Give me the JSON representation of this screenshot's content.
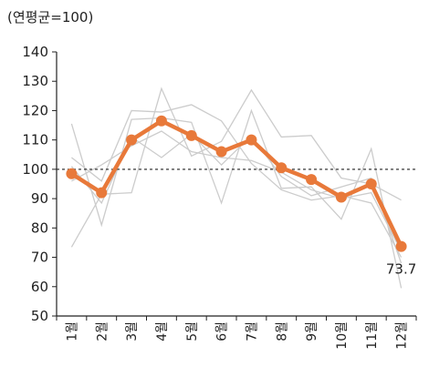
{
  "chart_data": {
    "type": "line",
    "unit_label": "(연평균=100)",
    "categories": [
      "1월",
      "2월",
      "3월",
      "4월",
      "5월",
      "6월",
      "7월",
      "8월",
      "9월",
      "10월",
      "11월",
      "12월"
    ],
    "ylim": [
      50,
      140
    ],
    "y_ticks": [
      "140",
      "130",
      "120",
      "110",
      "100",
      "90",
      "80",
      "70",
      "60",
      "50"
    ],
    "reference_line": 100,
    "highlight_series": {
      "values": [
        98.5,
        92,
        110,
        116.5,
        111.5,
        106,
        110,
        100.5,
        96.5,
        90.5,
        95,
        73.7
      ],
      "color": "#e8793a",
      "end_label": "73.7"
    },
    "background_series": [
      {
        "values": [
          115.5,
          81,
          117,
          117.5,
          116,
          88.5,
          120,
          93.5,
          94,
          83,
          107,
          59.5
        ]
      },
      {
        "values": [
          73.5,
          91.5,
          92,
          127.5,
          104.5,
          109.5,
          127,
          111,
          111.5,
          97,
          95,
          89.5
        ]
      },
      {
        "values": [
          104,
          96,
          120,
          119.5,
          122,
          116.5,
          102,
          93,
          89.5,
          91,
          88.5,
          70
        ]
      },
      {
        "values": [
          96,
          101.5,
          108,
          113,
          106,
          104,
          103,
          99,
          93,
          90,
          92,
          72
        ]
      },
      {
        "values": [
          101,
          88.5,
          111,
          104,
          112,
          101.5,
          111.5,
          97.5,
          91,
          94,
          97,
          68
        ]
      }
    ],
    "background_color": "#cccccc",
    "grid": false
  }
}
